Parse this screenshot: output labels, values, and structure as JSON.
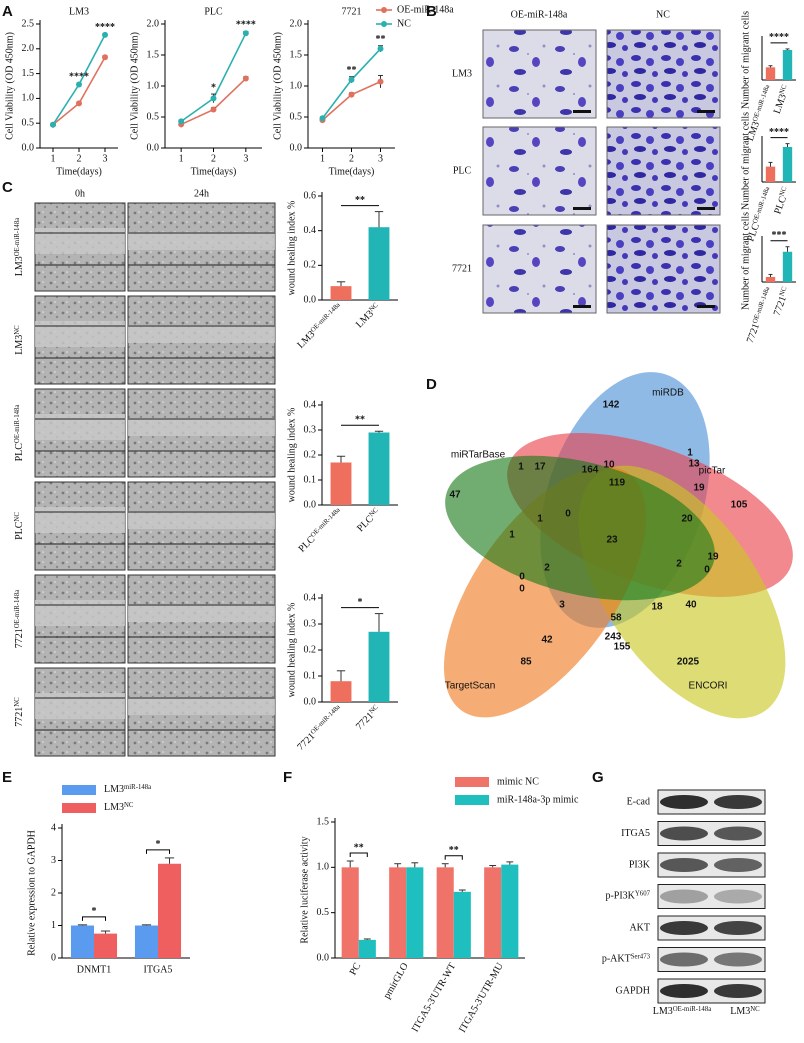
{
  "panels": [
    "A",
    "B",
    "C",
    "D",
    "E",
    "F",
    "G"
  ],
  "chart_data": [
    {
      "type": "line",
      "title": "LM3",
      "xlabel": "Time(days)",
      "ylabel": "Cell Viability (OD 450nm)",
      "x": [
        1,
        2,
        3
      ],
      "xlim": [
        0.5,
        3.5
      ],
      "xticks": [
        1,
        2,
        3
      ],
      "ylim": [
        0,
        2.5
      ],
      "yticks": [
        {
          "value": 0,
          "label": "0.0"
        },
        {
          "value": 0.5,
          "label": "0.5"
        },
        {
          "value": 1,
          "label": "1.0"
        },
        {
          "value": 1.5,
          "label": "1.5"
        },
        {
          "value": 2,
          "label": "2.0"
        },
        {
          "value": 2.5,
          "label": "2.5"
        }
      ],
      "series": [
        {
          "color": "#e0715e",
          "values": [
            0.47,
            0.9,
            1.83
          ],
          "errors": [
            0.02,
            0.03,
            0.03
          ]
        },
        {
          "color": "#2bb0b0",
          "values": [
            0.47,
            1.28,
            2.28
          ],
          "errors": [
            0.02,
            0.03,
            0.02
          ]
        }
      ],
      "annotations": [
        {
          "text": "****",
          "x": 2
        },
        {
          "text": "****",
          "x": 3
        }
      ]
    },
    {
      "type": "line",
      "title": "PLC",
      "xlabel": "Time(days)",
      "ylabel": "Cell Viability (OD 450nm)",
      "x": [
        1,
        2,
        3
      ],
      "xlim": [
        0.5,
        3.5
      ],
      "xticks": [
        1,
        2,
        3
      ],
      "ylim": [
        0,
        2
      ],
      "yticks": [
        {
          "value": 0,
          "label": "0.0"
        },
        {
          "value": 0.5,
          "label": "0.5"
        },
        {
          "value": 1,
          "label": "1.0"
        },
        {
          "value": 1.5,
          "label": "1.5"
        },
        {
          "value": 2,
          "label": "2.0"
        }
      ],
      "series": [
        {
          "color": "#e0715e",
          "values": [
            0.38,
            0.62,
            1.12
          ],
          "errors": [
            0.02,
            0.03,
            0.03
          ]
        },
        {
          "color": "#2bb0b0",
          "values": [
            0.43,
            0.8,
            1.85
          ],
          "errors": [
            0.02,
            0.07,
            0.03
          ]
        }
      ],
      "annotations": [
        {
          "text": "*",
          "x": 2
        },
        {
          "text": "****",
          "x": 3
        }
      ]
    },
    {
      "type": "line",
      "title": "7721",
      "xlabel": "Time(days)",
      "ylabel": "Cell Viability (OD 450nm)",
      "x": [
        1,
        2,
        3
      ],
      "xlim": [
        0.5,
        3.5
      ],
      "xticks": [
        1,
        2,
        3
      ],
      "ylim": [
        0,
        2
      ],
      "yticks": [
        {
          "value": 0,
          "label": "0.0"
        },
        {
          "value": 0.5,
          "label": "0.5"
        },
        {
          "value": 1,
          "label": "1.0"
        },
        {
          "value": 1.5,
          "label": "1.5"
        },
        {
          "value": 2,
          "label": "2.0"
        }
      ],
      "series": [
        {
          "name": "OE-miR-148a",
          "color": "#e0715e",
          "values": [
            0.45,
            0.86,
            1.07
          ],
          "errors": [
            0.02,
            0.03,
            0.1
          ]
        },
        {
          "name": "NC",
          "color": "#2bb0b0",
          "values": [
            0.48,
            1.1,
            1.6
          ],
          "errors": [
            0.02,
            0.05,
            0.05
          ]
        }
      ],
      "annotations": [
        {
          "text": "**",
          "x": 2
        },
        {
          "text": "**",
          "x": 3
        }
      ]
    },
    {
      "type": "bar",
      "ylabel": "Number of migrant cells",
      "categories": [
        {
          "text": "LM3",
          "sup": "OE-miR-148a"
        },
        {
          "text": "LM3",
          "sup": "NC"
        }
      ],
      "values": [
        95,
        225
      ],
      "errors": [
        12,
        8
      ],
      "colors": [
        "#ef6f5f",
        "#22b5b5"
      ],
      "ylim": [
        0,
        300
      ],
      "annotation": "****"
    },
    {
      "type": "bar",
      "ylabel": "Number of migrant cells",
      "categories": [
        {
          "text": "PLC",
          "sup": "OE-miR-148a"
        },
        {
          "text": "PLC",
          "sup": "NC"
        }
      ],
      "values": [
        55,
        125
      ],
      "errors": [
        15,
        12
      ],
      "colors": [
        "#ef6f5f",
        "#22b5b5"
      ],
      "ylim": [
        0,
        150
      ],
      "annotation": "****"
    },
    {
      "type": "bar",
      "ylabel": "Number of migrant cells",
      "categories": [
        {
          "text": "7721",
          "sup": "OE-miR-148a"
        },
        {
          "text": "7721",
          "sup": "NC"
        }
      ],
      "values": [
        30,
        180
      ],
      "errors": [
        15,
        30
      ],
      "colors": [
        "#ef6f5f",
        "#22b5b5"
      ],
      "ylim": [
        0,
        250
      ],
      "annotation": "***"
    },
    {
      "type": "bar",
      "ylabel": "wound healing index %",
      "categories": [
        {
          "text": "LM3",
          "sup": "OE-miR-148a"
        },
        {
          "text": "LM3",
          "sup": "NC"
        }
      ],
      "values": [
        0.08,
        0.42
      ],
      "errors": [
        0.025,
        0.09
      ],
      "colors": [
        "#ef6f5f",
        "#22b5b5"
      ],
      "ylim": [
        0,
        0.6
      ],
      "yticks": [
        {
          "value": 0,
          "label": "0.0"
        },
        0.2,
        0.4,
        0.6
      ],
      "annotation": "**"
    },
    {
      "type": "bar",
      "ylabel": "wound healing index %",
      "categories": [
        {
          "text": "PLC",
          "sup": "OE-miR-148a"
        },
        {
          "text": "PLC",
          "sup": "NC"
        }
      ],
      "values": [
        0.17,
        0.29
      ],
      "errors": [
        0.025,
        0.005
      ],
      "colors": [
        "#ef6f5f",
        "#22b5b5"
      ],
      "ylim": [
        0,
        0.4
      ],
      "yticks": [
        {
          "value": 0,
          "label": "0.0"
        },
        0.1,
        0.2,
        0.3,
        0.4
      ],
      "annotation": "**"
    },
    {
      "type": "bar",
      "ylabel": "wound healing index %",
      "categories": [
        {
          "text": "7721",
          "sup": "OE-miR-148a"
        },
        {
          "text": "7721",
          "sup": "NC"
        }
      ],
      "values": [
        0.08,
        0.27
      ],
      "errors": [
        0.04,
        0.07
      ],
      "colors": [
        "#ef6f5f",
        "#22b5b5"
      ],
      "ylim": [
        0,
        0.4
      ],
      "yticks": [
        {
          "value": 0,
          "label": "0.0"
        },
        0.1,
        0.2,
        0.3,
        0.4
      ],
      "annotation": "*"
    },
    {
      "type": "bar",
      "ylabel": "Relative expression to GAPDH",
      "categories": [
        "DNMT1",
        "ITGA5"
      ],
      "series": [
        {
          "name": {
            "text": "LM3",
            "sup": "miR-148a"
          },
          "color": "#5b9bef",
          "values": [
            1.0,
            1.0
          ],
          "errors": [
            0.02,
            0.02
          ]
        },
        {
          "name": {
            "text": "LM3",
            "sup": "NC"
          },
          "color": "#ef5f5f",
          "values": [
            0.75,
            2.9
          ],
          "errors": [
            0.08,
            0.18
          ]
        }
      ],
      "ylim": [
        0,
        4
      ],
      "yticks": [
        0,
        1,
        2,
        3,
        4
      ],
      "annotations": [
        {
          "text": "*",
          "category": "DNMT1"
        },
        {
          "text": "*",
          "category": "ITGA5"
        }
      ]
    },
    {
      "type": "bar",
      "ylabel": "Relative luciferase activity",
      "categories": [
        "PC",
        "pmirGLO",
        "ITGA5-3'UTR-WT",
        "ITGA5-3'UTR-MU"
      ],
      "series": [
        {
          "name": "mimic NC",
          "color": "#f0736a",
          "values": [
            1.0,
            1.0,
            1.0,
            1.0
          ],
          "errors": [
            0.07,
            0.04,
            0.04,
            0.02
          ]
        },
        {
          "name": "miR-148a-3p mimic",
          "color": "#1fbfbf",
          "values": [
            0.2,
            1.0,
            0.73,
            1.03
          ],
          "errors": [
            0.01,
            0.05,
            0.02,
            0.03
          ]
        }
      ],
      "ylim": [
        0,
        1.5
      ],
      "yticks": [
        {
          "value": 0,
          "label": "0.0"
        },
        {
          "value": 0.5,
          "label": "0.5"
        },
        {
          "value": 1,
          "label": "1.0"
        },
        {
          "value": 1.5,
          "label": "1.5"
        }
      ],
      "annotations": [
        {
          "text": "**",
          "category": "PC"
        },
        {
          "text": "**",
          "category": "ITGA5-3'UTR-WT"
        }
      ]
    }
  ],
  "transwell": {
    "columns": [
      "OE-miR-148a",
      "NC"
    ],
    "rows": [
      "LM3",
      "PLC",
      "7721"
    ]
  },
  "wound": {
    "columns": [
      "0h",
      "24h"
    ],
    "rows": [
      {
        "text": "LM3",
        "sup": "OE-miR-148a"
      },
      {
        "text": "LM3",
        "sup": "NC"
      },
      {
        "text": "PLC",
        "sup": "OE-miR-148a"
      },
      {
        "text": "PLC",
        "sup": "NC"
      },
      {
        "text": "7721",
        "sup": "OE-miR-148a"
      },
      {
        "text": "7721",
        "sup": "NC"
      }
    ]
  },
  "venn": {
    "sets": [
      {
        "name": "miRDB",
        "color": "#4a8fd6"
      },
      {
        "name": "picTar",
        "color": "#e8404a"
      },
      {
        "name": "ENCORI",
        "color": "#c9c820"
      },
      {
        "name": "TargetScan",
        "color": "#f07a20"
      },
      {
        "name": "miRTarBase",
        "color": "#1a7a1a"
      }
    ],
    "regions": [
      142,
      164,
      10,
      1,
      13,
      119,
      19,
      105,
      1,
      17,
      0,
      47,
      1,
      20,
      23,
      1,
      19,
      0,
      2,
      2,
      0,
      0,
      3,
      58,
      18,
      40,
      42,
      243,
      155,
      2025,
      85
    ]
  },
  "western": {
    "rows": [
      "E-cad",
      "ITGA5",
      "PI3K",
      {
        "text": "p-PI3K",
        "sup": "Y607"
      },
      "AKT",
      {
        "text": "p-AKT",
        "sup": "Ser473"
      },
      "GAPDH"
    ],
    "columns": [
      {
        "text": "LM3",
        "sup": "OE-miR-148a"
      },
      {
        "text": "LM3",
        "sup": "NC"
      }
    ]
  }
}
